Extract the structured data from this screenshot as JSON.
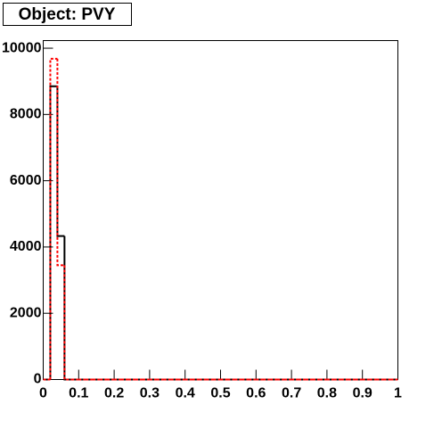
{
  "chart_data": {
    "type": "histogram",
    "title": "Object: PVY",
    "bins": [
      0,
      0.02,
      0.04,
      0.06,
      0.08,
      0.1,
      0.12,
      0.14,
      0.16,
      0.18,
      0.2,
      0.22,
      0.24,
      0.26,
      0.28,
      0.3,
      0.32,
      0.34,
      0.36,
      0.38,
      0.4,
      0.42,
      0.44,
      0.46,
      0.48,
      0.5,
      0.52,
      0.54,
      0.56,
      0.58,
      0.6,
      0.62,
      0.64,
      0.66,
      0.68,
      0.7,
      0.72,
      0.74,
      0.76,
      0.78,
      0.8,
      0.82,
      0.84,
      0.86,
      0.88,
      0.9,
      0.92,
      0.94,
      0.96,
      0.98,
      1
    ],
    "series": [
      {
        "color": "#000000",
        "line_style": "solid",
        "values": [
          0,
          8850,
          4330,
          0,
          0,
          0,
          0,
          0,
          0,
          0,
          0,
          0,
          0,
          0,
          0,
          0,
          0,
          0,
          0,
          0,
          0,
          0,
          0,
          0,
          0,
          0,
          0,
          0,
          0,
          0,
          0,
          0,
          0,
          0,
          0,
          0,
          0,
          0,
          0,
          0,
          0,
          0,
          0,
          0,
          0,
          0,
          0,
          0,
          0,
          0
        ]
      },
      {
        "color": "#ff0000",
        "line_style": "dashed",
        "values": [
          0,
          9680,
          3450,
          0,
          0,
          0,
          0,
          0,
          0,
          0,
          0,
          0,
          0,
          0,
          0,
          0,
          0,
          0,
          0,
          0,
          0,
          0,
          0,
          0,
          0,
          0,
          0,
          0,
          0,
          0,
          0,
          0,
          0,
          0,
          0,
          0,
          0,
          0,
          0,
          0,
          0,
          0,
          0,
          0,
          0,
          0,
          0,
          0,
          0,
          0
        ]
      }
    ],
    "xlim": [
      0,
      1
    ],
    "xticks": [
      0,
      0.1,
      0.2,
      0.3,
      0.4,
      0.5,
      0.6,
      0.7,
      0.8,
      0.9,
      1
    ],
    "ylim": [
      0,
      10230
    ],
    "yticks": [
      0,
      2000,
      4000,
      6000,
      8000,
      10000
    ]
  }
}
